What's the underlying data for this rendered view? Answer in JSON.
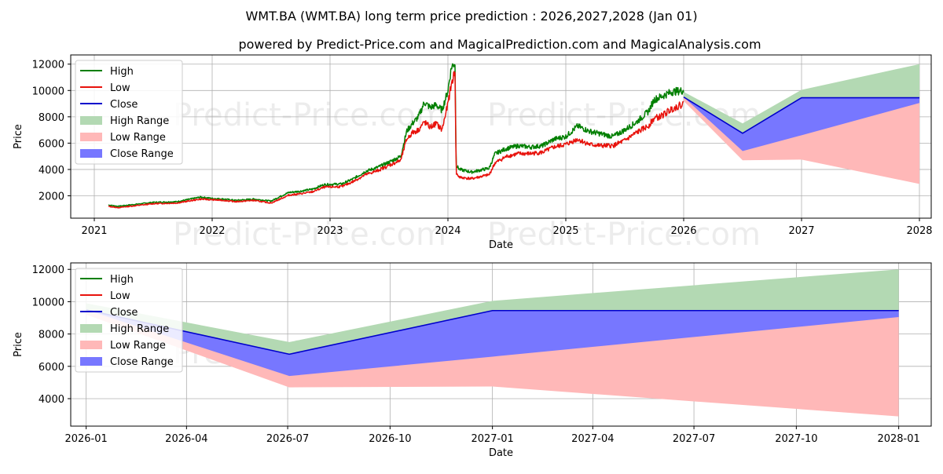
{
  "title": "WMT.BA (WMT.BA) long term price prediction : 2026,2027,2028 (Jan 01)",
  "subtitle": "powered by Predict-Price.com and MagicalPrediction.com and MagicalAnalysis.com",
  "watermark": "Predict-Price.com",
  "colors": {
    "high": "#007f00",
    "low": "#e8120c",
    "close": "#0000cc",
    "high_range": "#b3d9b3",
    "low_range": "#ffb8b8",
    "close_range": "#7777ff"
  },
  "chart_data": [
    {
      "type": "line",
      "name": "history-and-forecast",
      "xlabel": "Date",
      "ylabel": "Price",
      "xlim": [
        2020.8,
        2028.1
      ],
      "ylim": [
        300,
        12700
      ],
      "x_ticks": [
        2021,
        2022,
        2023,
        2024,
        2025,
        2026,
        2027,
        2028
      ],
      "x_tick_labels": [
        "2021",
        "2022",
        "2023",
        "2024",
        "2025",
        "2026",
        "2027",
        "2028"
      ],
      "y_ticks": [
        2000,
        4000,
        6000,
        8000,
        10000,
        12000
      ],
      "y_tick_labels": [
        "2000",
        "4000",
        "6000",
        "8000",
        "10000",
        "12000"
      ],
      "grid": true,
      "legend": [
        "High",
        "Low",
        "Close",
        "High Range",
        "Low Range",
        "Close Range"
      ],
      "legend_position": "top-left",
      "history": {
        "x": [
          2021.12,
          2021.2,
          2021.35,
          2021.5,
          2021.7,
          2021.9,
          2022.0,
          2022.1,
          2022.2,
          2022.35,
          2022.5,
          2022.6,
          2022.65,
          2022.75,
          2022.85,
          2022.95,
          2023.1,
          2023.2,
          2023.3,
          2023.4,
          2023.5,
          2023.6,
          2023.65,
          2023.7,
          2023.75,
          2023.8,
          2023.85,
          2023.9,
          2023.95,
          2024.0,
          2024.03,
          2024.06,
          2024.07,
          2024.1,
          2024.2,
          2024.35,
          2024.4,
          2024.5,
          2024.6,
          2024.7,
          2024.8,
          2024.9,
          2025.0,
          2025.1,
          2025.2,
          2025.3,
          2025.4,
          2025.5,
          2025.6,
          2025.7,
          2025.75,
          2025.8,
          2025.9,
          2026.0
        ],
        "close": [
          1250,
          1150,
          1300,
          1450,
          1500,
          1850,
          1750,
          1700,
          1600,
          1700,
          1550,
          1950,
          2150,
          2250,
          2400,
          2750,
          2800,
          3200,
          3700,
          4000,
          4400,
          4800,
          6500,
          7200,
          7500,
          8400,
          8000,
          8300,
          7800,
          9500,
          11500,
          12000,
          4000,
          3700,
          3500,
          3800,
          4800,
          5300,
          5500,
          5400,
          5500,
          6000,
          6200,
          6800,
          6500,
          6300,
          6200,
          6600,
          7200,
          7800,
          8600,
          8800,
          9200,
          9500
        ],
        "high": [
          1300,
          1200,
          1350,
          1500,
          1550,
          1900,
          1800,
          1750,
          1650,
          1750,
          1600,
          2050,
          2250,
          2350,
          2500,
          2850,
          2900,
          3300,
          3850,
          4150,
          4550,
          5000,
          6900,
          7500,
          8000,
          9100,
          8700,
          8900,
          8500,
          10000,
          11800,
          12100,
          4300,
          4000,
          3800,
          4100,
          5200,
          5600,
          5800,
          5700,
          5800,
          6300,
          6500,
          7300,
          6900,
          6700,
          6500,
          7000,
          7600,
          8400,
          9300,
          9500,
          9900,
          10000
        ],
        "low": [
          1200,
          1100,
          1250,
          1400,
          1450,
          1750,
          1700,
          1650,
          1550,
          1650,
          1450,
          1850,
          2050,
          2150,
          2300,
          2650,
          2700,
          3100,
          3600,
          3900,
          4300,
          4700,
          6300,
          6800,
          7000,
          7600,
          7200,
          7500,
          7000,
          9000,
          10500,
          11500,
          3700,
          3400,
          3300,
          3600,
          4500,
          5000,
          5200,
          5200,
          5300,
          5700,
          5900,
          6300,
          5900,
          5800,
          5800,
          6200,
          6800,
          7300,
          7900,
          8000,
          8600,
          9000
        ]
      },
      "forecast": {
        "x": [
          2026.0,
          2026.5,
          2027.0,
          2028.0
        ],
        "close": [
          9500,
          6750,
          9450,
          9450
        ],
        "high": [
          9900,
          7500,
          10050,
          12000
        ],
        "low": [
          9200,
          4700,
          4750,
          2900
        ],
        "close_range_upper": [
          9500,
          6750,
          9450,
          9450
        ],
        "close_range_lower": [
          9500,
          5400,
          6600,
          9050
        ]
      }
    },
    {
      "type": "line",
      "name": "forecast-zoom",
      "xlabel": "Date",
      "ylabel": "Price",
      "xlim": [
        2025.962,
        2028.08
      ],
      "ylim": [
        2300,
        12400
      ],
      "x_ticks": [
        2026.0,
        2026.247,
        2026.496,
        2026.748,
        2027.0,
        2027.247,
        2027.496,
        2027.748,
        2028.0
      ],
      "x_tick_labels": [
        "2026-01",
        "2026-04",
        "2026-07",
        "2026-10",
        "2027-01",
        "2027-04",
        "2027-07",
        "2027-10",
        "2028-01"
      ],
      "y_ticks": [
        4000,
        6000,
        8000,
        10000,
        12000
      ],
      "y_tick_labels": [
        "4000",
        "6000",
        "8000",
        "10000",
        "12000"
      ],
      "grid": true,
      "legend": [
        "High",
        "Low",
        "Close",
        "High Range",
        "Low Range",
        "Close Range"
      ],
      "legend_position": "top-left",
      "forecast": {
        "x": [
          2026.0,
          2026.5,
          2027.0,
          2028.0
        ],
        "close": [
          9500,
          6750,
          9450,
          9450
        ],
        "high": [
          9900,
          7500,
          10050,
          12000
        ],
        "low": [
          9200,
          4700,
          4750,
          2900
        ],
        "close_range_upper": [
          9500,
          6750,
          9450,
          9450
        ],
        "close_range_lower": [
          9500,
          5400,
          6600,
          9050
        ]
      }
    }
  ]
}
